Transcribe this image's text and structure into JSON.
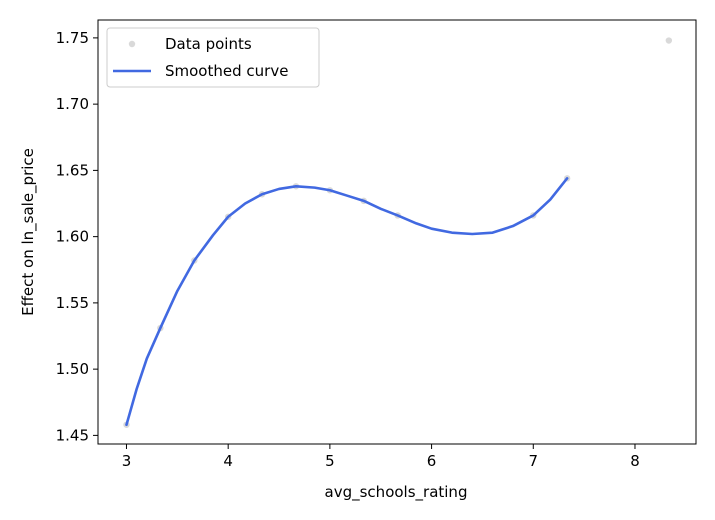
{
  "chart_data": {
    "type": "scatter",
    "title": "",
    "xlabel": "avg_schools_rating",
    "ylabel": "Effect on ln_sale_price",
    "xlim": [
      2.72,
      8.6
    ],
    "ylim": [
      1.4435,
      1.7635
    ],
    "xticks": [
      3,
      4,
      5,
      6,
      7,
      8
    ],
    "yticks": [
      1.45,
      1.5,
      1.55,
      1.6,
      1.65,
      1.7,
      1.75
    ],
    "ytick_labels": [
      "1.45",
      "1.50",
      "1.55",
      "1.60",
      "1.65",
      "1.70",
      "1.75"
    ],
    "grid": false,
    "legend_position": "top-left",
    "series": [
      {
        "name": "Data points",
        "kind": "scatter",
        "color": "#808080",
        "points": [
          {
            "x": 3.0,
            "y": 1.458
          },
          {
            "x": 3.333,
            "y": 1.531
          },
          {
            "x": 3.667,
            "y": 1.582
          },
          {
            "x": 4.0,
            "y": 1.615
          },
          {
            "x": 4.333,
            "y": 1.632
          },
          {
            "x": 4.667,
            "y": 1.638
          },
          {
            "x": 5.0,
            "y": 1.635
          },
          {
            "x": 5.333,
            "y": 1.627
          },
          {
            "x": 5.667,
            "y": 1.616
          },
          {
            "x": 7.0,
            "y": 1.616
          },
          {
            "x": 7.333,
            "y": 1.644
          },
          {
            "x": 8.333,
            "y": 1.748
          }
        ]
      },
      {
        "name": "Smoothed curve",
        "kind": "line",
        "color": "#4169e1",
        "x": [
          3.0,
          3.1,
          3.2,
          3.333,
          3.5,
          3.667,
          3.85,
          4.0,
          4.167,
          4.333,
          4.5,
          4.667,
          4.85,
          5.0,
          5.167,
          5.333,
          5.5,
          5.667,
          5.85,
          6.0,
          6.2,
          6.4,
          6.6,
          6.8,
          7.0,
          7.167,
          7.333
        ],
        "y": [
          1.458,
          1.485,
          1.508,
          1.531,
          1.559,
          1.582,
          1.601,
          1.615,
          1.625,
          1.632,
          1.636,
          1.638,
          1.637,
          1.635,
          1.631,
          1.627,
          1.621,
          1.616,
          1.61,
          1.606,
          1.603,
          1.602,
          1.603,
          1.608,
          1.616,
          1.628,
          1.644
        ]
      }
    ]
  }
}
